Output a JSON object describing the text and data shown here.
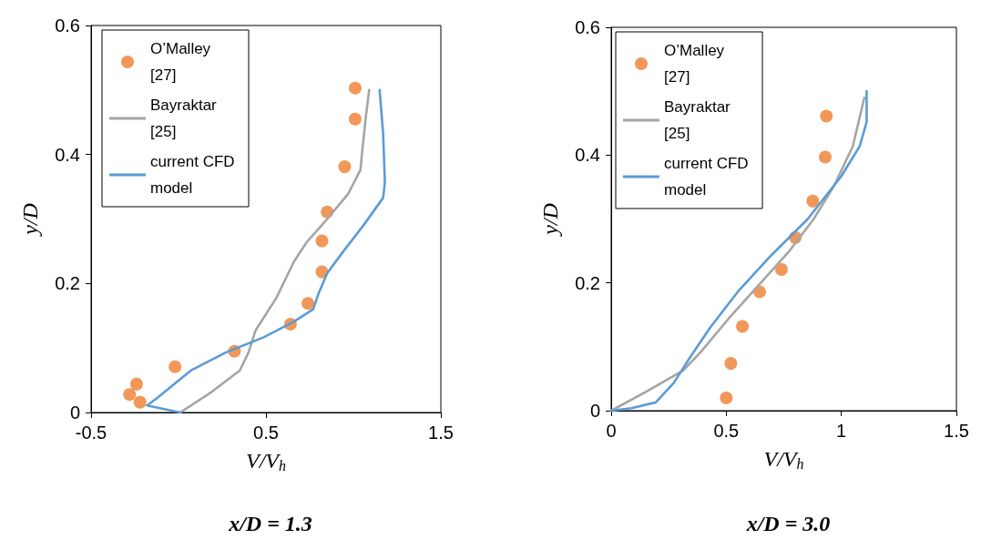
{
  "chart_data": [
    {
      "type": "line",
      "xlabel": "V/V$_{h}$",
      "ylabel": "y/D",
      "annotations": [
        "x/D = 1.3"
      ],
      "xlim": [
        -0.5,
        1.5
      ],
      "xticks": [
        -0.5,
        0.5,
        1.5
      ],
      "ylim": [
        0,
        0.6
      ],
      "yticks": [
        0,
        0.2,
        0.4,
        0.6
      ],
      "legend": "top left",
      "series": [
        {
          "name": "O’Malley [27]",
          "type": "scatter",
          "marker": "circle",
          "color": "#ed7d31",
          "x": [
            1.01,
            1.01,
            0.95,
            0.85,
            0.82,
            0.82,
            0.74,
            0.64,
            0.32,
            -0.02,
            -0.24,
            -0.28,
            -0.22
          ],
          "values": [
            0.503,
            0.455,
            0.381,
            0.311,
            0.266,
            0.218,
            0.169,
            0.137,
            0.095,
            0.071,
            0.044,
            0.028,
            0.016
          ]
        },
        {
          "name": "Bayraktar [25]",
          "color": "#a5a5a5",
          "x": [
            0.01,
            0.19,
            0.35,
            0.4,
            0.44,
            0.56,
            0.66,
            0.73,
            0.85,
            0.97,
            1.04,
            1.05,
            1.07,
            1.09
          ],
          "values": [
            0,
            0.032,
            0.065,
            0.093,
            0.127,
            0.178,
            0.234,
            0.263,
            0.3,
            0.339,
            0.376,
            0.404,
            0.456,
            0.5
          ]
        },
        {
          "name": "current CFD model",
          "color": "#5b9bd5",
          "x": [
            1.15,
            1.17,
            1.18,
            1.17,
            1.06,
            0.94,
            0.85,
            0.8,
            0.77,
            0.66,
            0.49,
            0.27,
            0.07,
            -0.12,
            -0.18,
            0.01
          ],
          "values": [
            0.5,
            0.432,
            0.357,
            0.333,
            0.291,
            0.249,
            0.216,
            0.184,
            0.16,
            0.141,
            0.117,
            0.093,
            0.065,
            0.023,
            0.011,
            0
          ]
        }
      ]
    },
    {
      "type": "line",
      "xlabel": "V/V$_{h}$",
      "ylabel": "y/D",
      "annotations": [
        "x/D = 3.0"
      ],
      "xlim": [
        0,
        1.5
      ],
      "xticks": [
        0,
        0.5,
        1,
        1.5
      ],
      "ylim": [
        0,
        0.6
      ],
      "yticks": [
        0,
        0.2,
        0.4,
        0.6
      ],
      "legend": "top left",
      "series": [
        {
          "name": "O’Malley [27]",
          "type": "scatter",
          "marker": "circle",
          "color": "#ed7d31",
          "x": [
            0.935,
            0.93,
            0.876,
            0.8,
            0.74,
            0.645,
            0.57,
            0.52,
            0.5
          ],
          "values": [
            0.461,
            0.397,
            0.328,
            0.271,
            0.221,
            0.186,
            0.132,
            0.074,
            0.02
          ]
        },
        {
          "name": "Bayraktar [25]",
          "color": "#a5a5a5",
          "x": [
            0,
            0.154,
            0.313,
            0.39,
            0.51,
            0.64,
            0.77,
            0.88,
            0.97,
            1.05,
            1.1
          ],
          "values": [
            0,
            0.03,
            0.063,
            0.092,
            0.144,
            0.196,
            0.248,
            0.3,
            0.353,
            0.414,
            0.49
          ]
        },
        {
          "name": "current CFD model",
          "color": "#5b9bd5",
          "x": [
            0,
            0.088,
            0.194,
            0.273,
            0.34,
            0.43,
            0.55,
            0.695,
            0.854,
            1.0,
            1.08,
            1.11,
            1.11
          ],
          "values": [
            0,
            0.004,
            0.013,
            0.044,
            0.082,
            0.13,
            0.186,
            0.243,
            0.3,
            0.367,
            0.414,
            0.452,
            0.5
          ]
        }
      ]
    }
  ]
}
